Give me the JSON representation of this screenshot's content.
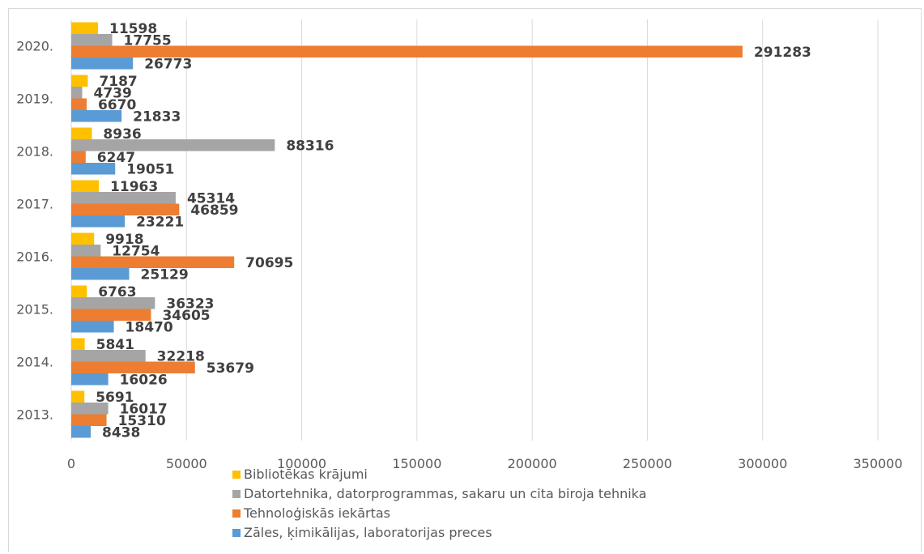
{
  "chart_data": {
    "type": "bar",
    "orientation": "horizontal",
    "categories": [
      "2013.",
      "2014.",
      "2015.",
      "2016.",
      "2017.",
      "2018.",
      "2019.",
      "2020."
    ],
    "series": [
      {
        "name": "Bibliotēkas krājumi",
        "color": "#FFC000",
        "values": [
          5691,
          5841,
          6763,
          9918,
          11963,
          8936,
          7187,
          11598
        ]
      },
      {
        "name": "Datortehnika, datorprogrammas, sakaru un cita biroja tehnika",
        "color": "#A5A5A5",
        "values": [
          16017,
          32218,
          36323,
          12754,
          45314,
          88316,
          4739,
          17755
        ]
      },
      {
        "name": "Tehnoloģiskās iekārtas",
        "color": "#ED7D31",
        "values": [
          15310,
          53679,
          34605,
          70695,
          46859,
          6247,
          6670,
          291283
        ]
      },
      {
        "name": "Zāles, ķimikālijas, laboratorijas preces",
        "color": "#5B9BD5",
        "values": [
          8438,
          16026,
          18470,
          25129,
          23221,
          19051,
          21833,
          26773
        ]
      }
    ],
    "xlim": [
      0,
      350000
    ],
    "xticks": [
      "0",
      "50000",
      "100000",
      "150000",
      "200000",
      "250000",
      "300000",
      "350000"
    ],
    "grid": true,
    "legend_position": "bottom"
  }
}
